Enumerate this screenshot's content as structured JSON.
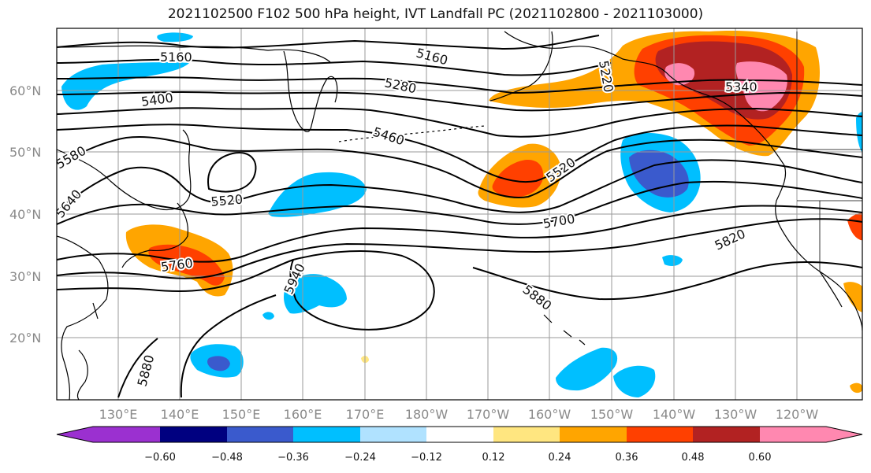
{
  "title": "2021102500 F102 500 hPa height, IVT Landfall PC (2021102800 - 2021103000)",
  "map": {
    "lat_labels": [
      "60°N",
      "50°N",
      "40°N",
      "30°N",
      "20°N"
    ],
    "lon_labels": [
      "130°E",
      "140°E",
      "150°E",
      "160°E",
      "170°E",
      "180°W",
      "170°W",
      "160°W",
      "150°W",
      "140°W",
      "130°W",
      "120°W"
    ],
    "height_contour_labels": [
      "5160",
      "5160",
      "5400",
      "5280",
      "5220",
      "5340",
      "5460",
      "5580",
      "5520",
      "5520",
      "5640",
      "5700",
      "5760",
      "5820",
      "5940",
      "5880",
      "5880"
    ]
  },
  "colorbar": {
    "tick_labels": [
      "−0.60",
      "−0.48",
      "−0.36",
      "−0.24",
      "−0.12",
      "0.12",
      "0.24",
      "0.36",
      "0.48",
      "0.60"
    ],
    "colors": [
      "#9b30d0",
      "#000080",
      "#3a5acd",
      "#00bfff",
      "#b0e2ff",
      "#ffffff",
      "#ffe680",
      "#ffa500",
      "#ff4000",
      "#b22222",
      "#ff88b0"
    ]
  }
}
